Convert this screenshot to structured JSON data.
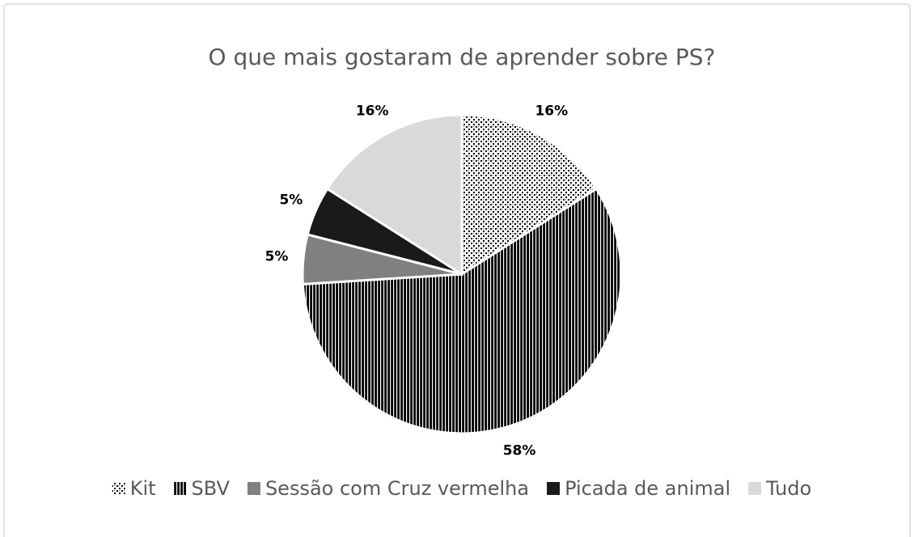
{
  "chart_data": {
    "type": "pie",
    "title": "O que mais gostaram de aprender sobre PS?",
    "categories": [
      "Kit",
      "SBV",
      "Sessão com Cruz vermelha",
      "Picada de animal",
      "Tudo"
    ],
    "values": [
      16,
      58,
      5,
      5,
      16
    ],
    "value_labels": [
      "16%",
      "58%",
      "5%",
      "5%",
      "16%"
    ],
    "colors": [
      "#ffffff",
      "#000000",
      "#808080",
      "#1a1a1a",
      "#d9d9d9"
    ],
    "patterns": [
      "dots",
      "stripes",
      null,
      null,
      null
    ],
    "legend": "bottom"
  }
}
